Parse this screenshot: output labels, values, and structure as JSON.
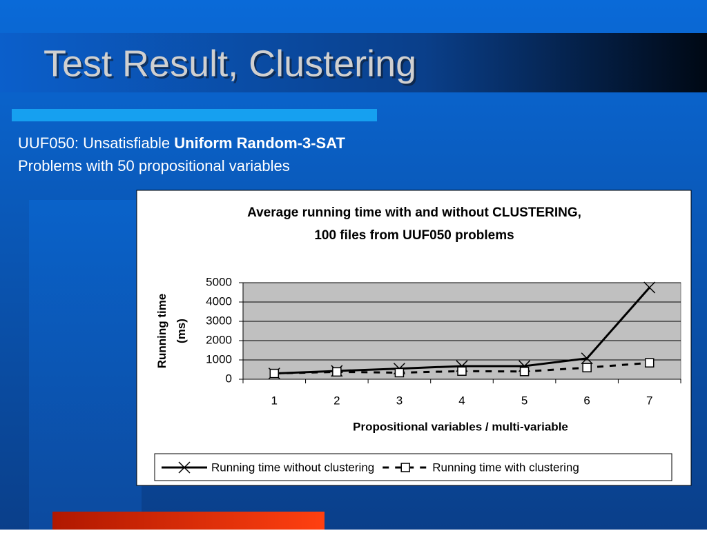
{
  "slide": {
    "title": "Test Result, Clustering",
    "subtitle_plain": "UUF050: Unsatisfiable ",
    "subtitle_bold": "Uniform Random-3-SAT",
    "subtitle_line2": "Problems with 50 propositional variables"
  },
  "chart_data": {
    "type": "line",
    "title": [
      "Average running time with and without CLUSTERING,",
      "100 files from UUF050 problems"
    ],
    "ylabel": [
      "Running time",
      "(ms)"
    ],
    "xlabel": "Propositional variables / multi-variable",
    "categories": [
      "1",
      "2",
      "3",
      "4",
      "5",
      "6",
      "7"
    ],
    "series": [
      {
        "name": "Running time without clustering",
        "color": "#000000",
        "dash": false,
        "marker": "x",
        "values": [
          300,
          430,
          550,
          680,
          680,
          1080,
          4750
        ]
      },
      {
        "name": "Running time with clustering",
        "color": "#000000",
        "dash": true,
        "marker": "square",
        "values": [
          300,
          380,
          340,
          420,
          400,
          600,
          850
        ]
      }
    ],
    "ylim": [
      0,
      5000
    ],
    "yticks": [
      0,
      1000,
      2000,
      3000,
      4000,
      5000
    ],
    "grid": true,
    "legend": "bottom"
  }
}
